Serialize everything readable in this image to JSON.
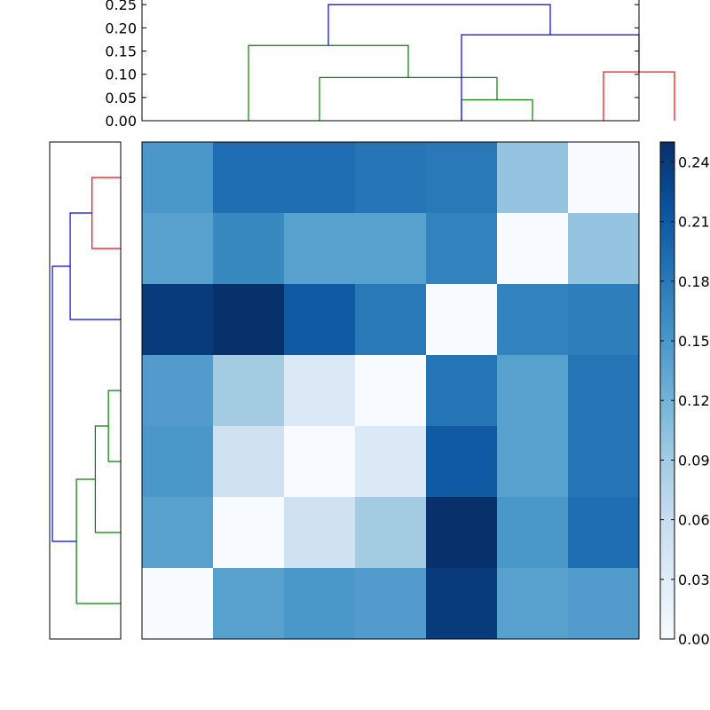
{
  "chart_data": [
    {
      "type": "dendrogram",
      "orientation": "top",
      "ylim": [
        0,
        0.26
      ],
      "yticks": [
        "0.00",
        "0.05",
        "0.10",
        "0.15",
        "0.20",
        "0.25"
      ],
      "links": [
        {
          "left": 4.5,
          "right": 5.5,
          "left_h": 0,
          "right_h": 0,
          "height": 0.045,
          "color": "#008000"
        },
        {
          "left": 2.5,
          "right": 5.0,
          "left_h": 0,
          "right_h": 0.045,
          "height": 0.093,
          "color": "#008000"
        },
        {
          "left": 1.5,
          "right": 3.75,
          "left_h": 0,
          "right_h": 0.093,
          "height": 0.162,
          "color": "#008000"
        },
        {
          "left": 6.5,
          "right": 7.5,
          "left_h": 0,
          "right_h": 0,
          "height": 0.105,
          "color": "#ff0000"
        },
        {
          "left": 4.5,
          "right": 7.0,
          "left_h": 0,
          "right_h": 0.105,
          "height": 0.185,
          "color": "#0000ff"
        },
        {
          "left": 2.625,
          "right": 5.75,
          "left_h": 0.162,
          "right_h": 0.185,
          "height": 0.25,
          "color": "#0000ff"
        }
      ]
    },
    {
      "type": "dendrogram",
      "orientation": "left",
      "links": [
        {
          "row_a": 3.5,
          "row_b": 4.5,
          "a_h": 0,
          "b_h": 0,
          "height": 0.045,
          "color": "#008000"
        },
        {
          "row_a": 4.0,
          "row_b": 5.5,
          "a_h": 0.045,
          "b_h": 0,
          "height": 0.093,
          "color": "#008000"
        },
        {
          "row_a": 4.75,
          "row_b": 6.5,
          "a_h": 0.093,
          "b_h": 0,
          "height": 0.162,
          "color": "#008000"
        },
        {
          "row_a": 0.5,
          "row_b": 1.5,
          "a_h": 0,
          "b_h": 0,
          "height": 0.105,
          "color": "#ff0000"
        },
        {
          "row_a": 1.0,
          "row_b": 2.5,
          "a_h": 0.105,
          "b_h": 0,
          "height": 0.185,
          "color": "#0000ff"
        },
        {
          "row_a": 1.75,
          "row_b": 5.625,
          "a_h": 0.185,
          "b_h": 0.162,
          "height": 0.25,
          "color": "#0000ff"
        }
      ],
      "xlim_reversed": [
        0.26,
        0
      ]
    },
    {
      "type": "heatmap",
      "colormap": "Blues",
      "vmin": 0.0,
      "vmax": 0.25,
      "values": [
        [
          0.15,
          0.19,
          0.19,
          0.185,
          0.18,
          0.1,
          0.0
        ],
        [
          0.14,
          0.165,
          0.14,
          0.14,
          0.17,
          0.0,
          0.1
        ],
        [
          0.24,
          0.25,
          0.21,
          0.18,
          0.0,
          0.17,
          0.175
        ],
        [
          0.145,
          0.09,
          0.035,
          0.0,
          0.185,
          0.14,
          0.185
        ],
        [
          0.15,
          0.05,
          0.0,
          0.035,
          0.21,
          0.14,
          0.185
        ],
        [
          0.14,
          0.0,
          0.05,
          0.09,
          0.25,
          0.15,
          0.19
        ],
        [
          0.0,
          0.14,
          0.15,
          0.145,
          0.24,
          0.14,
          0.145
        ]
      ]
    },
    {
      "type": "colorbar",
      "colormap": "Blues",
      "vmin": 0.0,
      "vmax": 0.25,
      "ticks": [
        "0.00",
        "0.03",
        "0.06",
        "0.09",
        "0.12",
        "0.15",
        "0.18",
        "0.21",
        "0.24"
      ]
    }
  ]
}
